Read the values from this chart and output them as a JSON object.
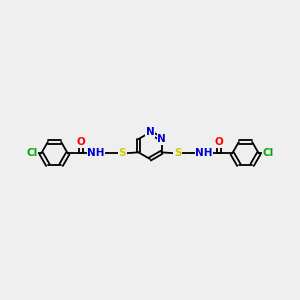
{
  "bg_color": "#efefef",
  "bond_color": "#000000",
  "bond_width": 1.3,
  "atom_colors": {
    "O": "#ff0000",
    "N": "#0000cc",
    "S": "#cccc00",
    "Cl": "#00aa00"
  },
  "font_size": 7.5,
  "fig_w": 3.0,
  "fig_h": 3.0,
  "dpi": 100,
  "xlim": [
    0,
    14
  ],
  "ylim": [
    0,
    10
  ]
}
